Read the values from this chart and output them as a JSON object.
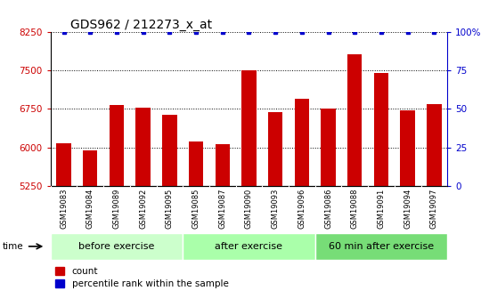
{
  "title": "GDS962 / 212273_x_at",
  "samples": [
    "GSM19083",
    "GSM19084",
    "GSM19089",
    "GSM19092",
    "GSM19095",
    "GSM19085",
    "GSM19087",
    "GSM19090",
    "GSM19093",
    "GSM19096",
    "GSM19086",
    "GSM19088",
    "GSM19091",
    "GSM19094",
    "GSM19097"
  ],
  "values": [
    6080,
    5940,
    6820,
    6770,
    6640,
    6110,
    6060,
    7510,
    6680,
    6950,
    6760,
    7820,
    7450,
    6720,
    6840
  ],
  "groups": [
    {
      "label": "before exercise",
      "start": 0,
      "end": 5,
      "color": "#ccffcc"
    },
    {
      "label": "after exercise",
      "start": 5,
      "end": 10,
      "color": "#aaffaa"
    },
    {
      "label": "60 min after exercise",
      "start": 10,
      "end": 15,
      "color": "#77dd77"
    }
  ],
  "bar_color": "#cc0000",
  "dot_color": "#0000cc",
  "ylim": [
    5250,
    8250
  ],
  "yticks": [
    5250,
    6000,
    6750,
    7500,
    8250
  ],
  "y2ticks": [
    0,
    25,
    50,
    75,
    100
  ],
  "y2lim": [
    0,
    100
  ],
  "tick_label_area_color": "#c8c8c8",
  "time_label": "time",
  "legend_count": "count",
  "legend_percentile": "percentile rank within the sample",
  "title_fontsize": 10,
  "axis_label_fontsize": 7.5,
  "sample_label_fontsize": 6,
  "group_label_fontsize": 8
}
